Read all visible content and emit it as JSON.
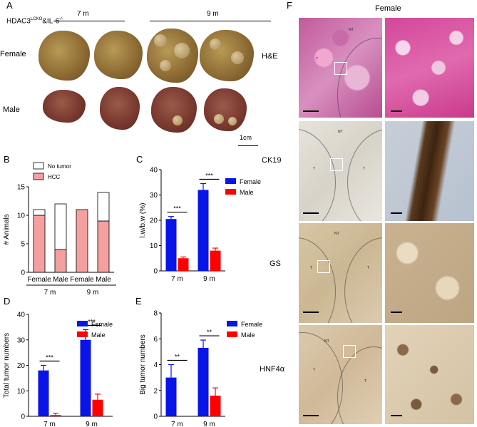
{
  "panelA": {
    "letter": "A",
    "genotype_prefix": "HDAC3",
    "genotype_sup": "LCKO",
    "genotype_suffix": "&IL-6",
    "genotype_sup2": "-/-",
    "age_7m": "7 m",
    "age_9m": "9 m",
    "row_female": "Female",
    "row_male": "Male",
    "scale": "1cm"
  },
  "panelB": {
    "letter": "B"
  },
  "panelC": {
    "letter": "C"
  },
  "panelD": {
    "letter": "D"
  },
  "panelE": {
    "letter": "E"
  },
  "panelF": {
    "letter": "F",
    "title": "Female",
    "rows": [
      "H&E",
      "CK19",
      "GS",
      "HNF4α"
    ],
    "region_T": "T",
    "region_NT": "NT"
  },
  "colors": {
    "female": "#0a14e6",
    "male": "#ff0000",
    "hcc": "#f4a0a0",
    "no_tumor": "#ffffff"
  },
  "chart_data": [
    {
      "panel": "B",
      "type": "bar",
      "stacked": true,
      "categories": [
        "Female",
        "Male",
        "Female",
        "Male"
      ],
      "groups": [
        {
          "label": "7 m",
          "members": [
            0,
            1
          ]
        },
        {
          "label": "9 m",
          "members": [
            2,
            3
          ]
        }
      ],
      "series": [
        {
          "name": "HCC",
          "values": [
            10,
            4,
            11,
            9
          ]
        },
        {
          "name": "No tumor",
          "values": [
            1,
            8,
            0,
            5
          ]
        }
      ],
      "ylabel": "# Animals",
      "ylim": [
        0,
        15
      ],
      "yticks": [
        0,
        5,
        10,
        15
      ],
      "legend": "top"
    },
    {
      "panel": "C",
      "type": "bar",
      "categories": [
        "7 m",
        "9 m"
      ],
      "series": [
        {
          "name": "Female",
          "values": [
            20.5,
            32
          ],
          "errors": [
            1,
            2.5
          ]
        },
        {
          "name": "Male",
          "values": [
            5,
            8
          ],
          "errors": [
            0.5,
            1
          ]
        }
      ],
      "ylabel": "l.w/b.w  (%)",
      "ylim": [
        0,
        40
      ],
      "yticks": [
        0,
        10,
        20,
        30,
        40
      ],
      "significance": [
        "***",
        "***"
      ],
      "legend": "top-right"
    },
    {
      "panel": "D",
      "type": "bar",
      "categories": [
        "7 m",
        "9 m"
      ],
      "series": [
        {
          "name": "Female",
          "values": [
            18,
            30
          ],
          "errors": [
            2,
            4
          ]
        },
        {
          "name": "Male",
          "values": [
            0.5,
            6.5
          ],
          "errors": [
            0.7,
            2.2
          ]
        }
      ],
      "ylabel": "Total tumor numbers",
      "ylim": [
        0,
        40
      ],
      "yticks": [
        0,
        10,
        20,
        30,
        40
      ],
      "significance": [
        "***",
        "***"
      ],
      "legend": "top-right"
    },
    {
      "panel": "E",
      "type": "bar",
      "categories": [
        "7 m",
        "9 m"
      ],
      "series": [
        {
          "name": "Female",
          "values": [
            3,
            5.3
          ],
          "errors": [
            1,
            0.6
          ]
        },
        {
          "name": "Male",
          "values": [
            0,
            1.6
          ],
          "errors": [
            0,
            0.6
          ]
        }
      ],
      "ylabel": "Big tumor numbers",
      "ylim": [
        0,
        8
      ],
      "yticks": [
        0,
        2,
        4,
        6,
        8
      ],
      "significance": [
        "**",
        "**"
      ],
      "legend": "top-right"
    }
  ]
}
